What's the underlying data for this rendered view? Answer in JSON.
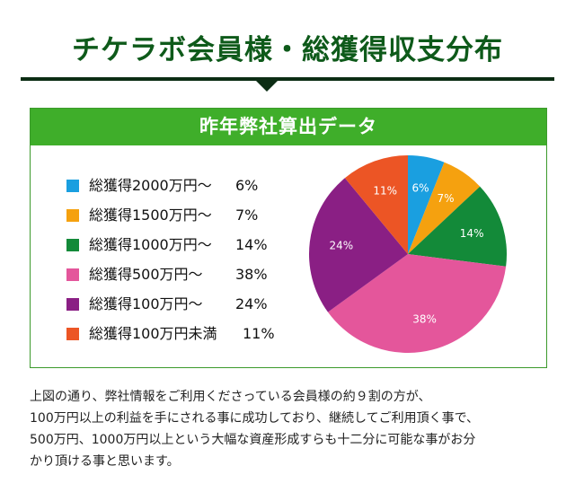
{
  "header": {
    "title": "チケラボ会員様・総獲得収支分布"
  },
  "panel": {
    "title": "昨年弊社算出データ"
  },
  "chart_data": {
    "type": "pie",
    "categories": [
      "総獲得2000万円〜",
      "総獲得1500万円〜",
      "総獲得1000万円〜",
      "総獲得500万円〜",
      "総獲得100万円〜",
      "総獲得100万円未満"
    ],
    "values": [
      6,
      7,
      14,
      38,
      24,
      11
    ],
    "value_labels": [
      "6%",
      "7%",
      "14%",
      "38%",
      "24%",
      "11%"
    ],
    "colors": [
      "#1a9fe0",
      "#f5a10f",
      "#138a39",
      "#e4569b",
      "#8a1f84",
      "#ec5525"
    ],
    "start_angle_deg": 0,
    "direction": "clockwise"
  },
  "legend": [
    {
      "label": "総獲得2000万円〜",
      "pct": "6%"
    },
    {
      "label": "総獲得1500万円〜",
      "pct": "7%"
    },
    {
      "label": "総獲得1000万円〜",
      "pct": "14%"
    },
    {
      "label": "総獲得500万円〜",
      "pct": "38%"
    },
    {
      "label": "総獲得100万円〜",
      "pct": "24%"
    },
    {
      "label": "総獲得100万円未満",
      "pct": "11%"
    }
  ],
  "description": {
    "line1": "上図の通り、弊社情報をご利用くださっている会員様の約９割の方が、",
    "line2": "100万円以上の利益を手にされる事に成功しており、継続してご利用頂く事で、",
    "line3": "500万円、1000万円以上という大幅な資産形成すらも十二分に可能な事がお分",
    "line4": "かり頂ける事と思います。"
  }
}
